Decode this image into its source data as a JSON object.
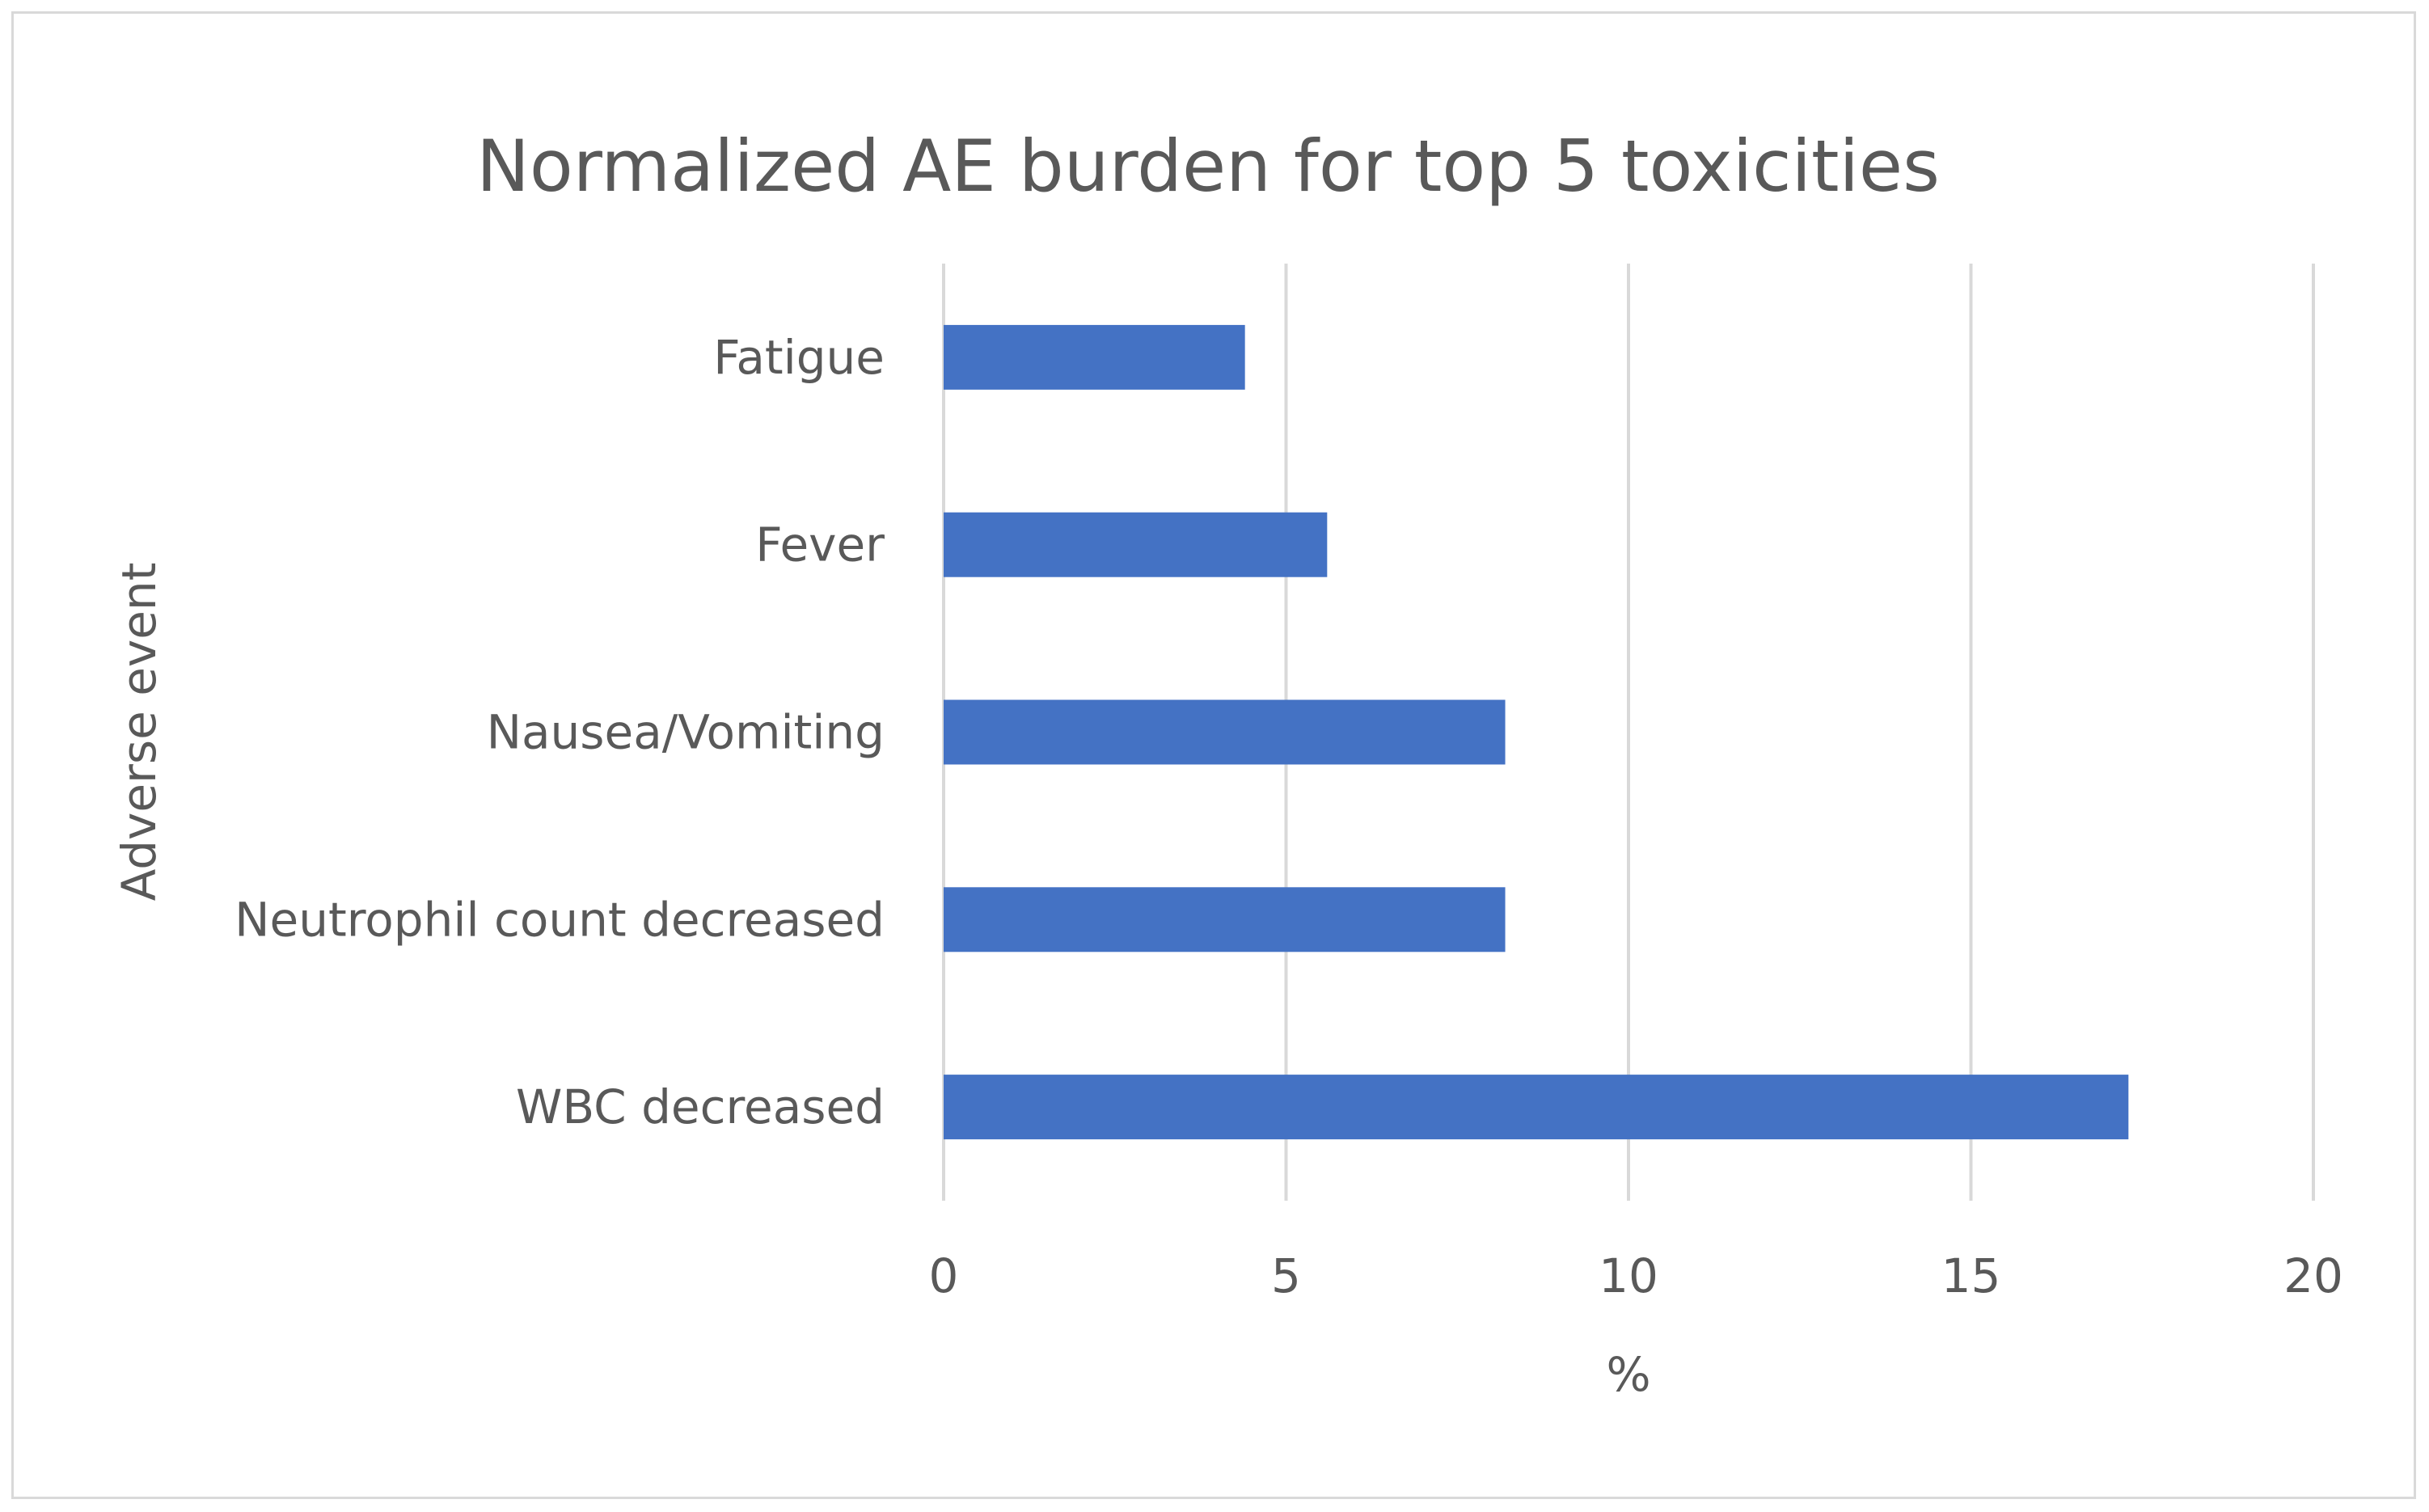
{
  "chart_data": {
    "type": "bar",
    "orientation": "horizontal",
    "title": "Normalized AE burden for top 5 toxicities",
    "xlabel": "%",
    "ylabel": "Adverse event",
    "categories": [
      "Fatigue",
      "Fever",
      "Nausea/Vomiting",
      "Neutrophil count decreased",
      "WBC decreased"
    ],
    "values": [
      4.4,
      5.6,
      8.2,
      8.2,
      17.3
    ],
    "xlim": [
      0,
      20
    ],
    "xticks": [
      "0",
      "5",
      "10",
      "15",
      "20"
    ],
    "grid": true,
    "legend": "none",
    "bar_color": "#4472C4",
    "grid_color": "#d9d9d9"
  }
}
